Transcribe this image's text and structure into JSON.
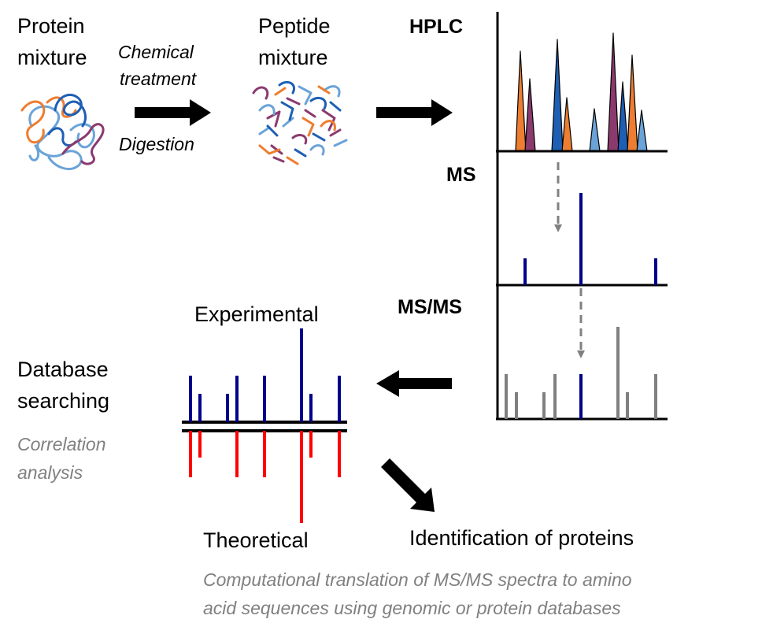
{
  "labels": {
    "protein_mixture": [
      "Protein",
      "mixture"
    ],
    "peptide_mixture": [
      "Peptide",
      "mixture"
    ],
    "chemical_treatment": [
      "Chemical",
      "treatment"
    ],
    "digestion": "Digestion",
    "hplc": "HPLC",
    "ms": "MS",
    "msms": "MS/MS",
    "experimental": "Experimental",
    "theoretical": "Theoretical",
    "database_searching": [
      "Database",
      "searching"
    ],
    "correlation_analysis": [
      "Correlation",
      "analysis"
    ],
    "identification": "Identification of proteins",
    "footnote": [
      "Computational translation of MS/MS spectra to  amino",
      "acid sequences using genomic or protein databases"
    ]
  },
  "colors": {
    "dark_blue": "#1e5fb4",
    "light_blue": "#6aa3d8",
    "orange": "#ed7d31",
    "purple": "#8b3a6e",
    "navy": "#00008b",
    "red": "#ff0000",
    "grey": "#808080"
  }
}
